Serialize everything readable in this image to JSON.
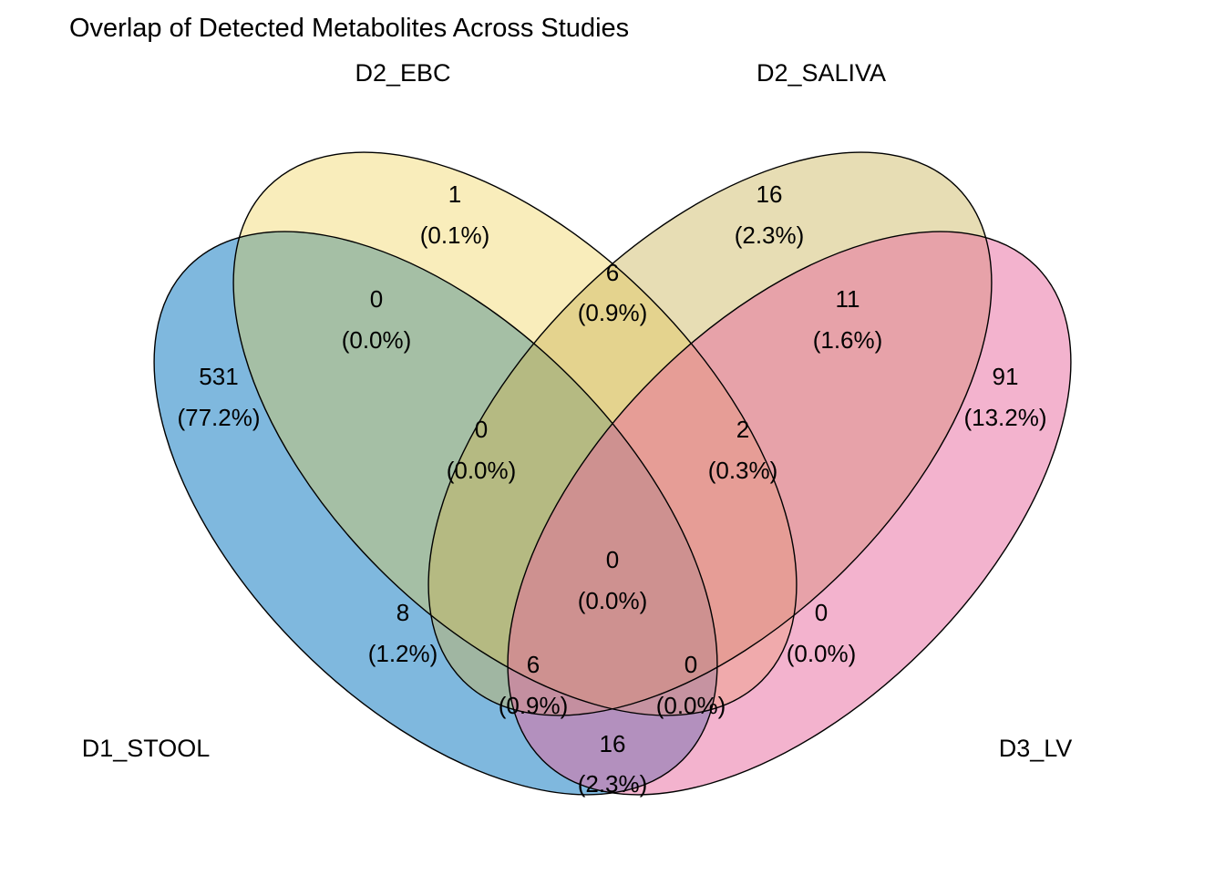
{
  "title": "Overlap of Detected Metabolites Across Studies",
  "colors": {
    "D1_STOOL": "#0072BD",
    "D2_EBC": "#EFCB3D",
    "D2_SALIVA": "#C9B458",
    "D3_LV": "#E8689E",
    "outline": "#000000"
  },
  "sets": [
    {
      "key": "stool",
      "name": "D1_STOOL"
    },
    {
      "key": "ebc",
      "name": "D2_EBC"
    },
    {
      "key": "saliva",
      "name": "D2_SALIVA"
    },
    {
      "key": "lv",
      "name": "D3_LV"
    }
  ],
  "regions": [
    {
      "id": "stool-only",
      "members": [
        "D1_STOOL"
      ],
      "count": "531",
      "percent": "(77.2%)"
    },
    {
      "id": "ebc-only",
      "members": [
        "D2_EBC"
      ],
      "count": "1",
      "percent": "(0.1%)"
    },
    {
      "id": "saliva-only",
      "members": [
        "D2_SALIVA"
      ],
      "count": "16",
      "percent": "(2.3%)"
    },
    {
      "id": "lv-only",
      "members": [
        "D3_LV"
      ],
      "count": "91",
      "percent": "(13.2%)"
    },
    {
      "id": "stool-ebc",
      "members": [
        "D1_STOOL",
        "D2_EBC"
      ],
      "count": "0",
      "percent": "(0.0%)"
    },
    {
      "id": "ebc-saliva",
      "members": [
        "D2_EBC",
        "D2_SALIVA"
      ],
      "count": "6",
      "percent": "(0.9%)"
    },
    {
      "id": "saliva-lv",
      "members": [
        "D2_SALIVA",
        "D3_LV"
      ],
      "count": "11",
      "percent": "(1.6%)"
    },
    {
      "id": "stool-ebc-saliva",
      "members": [
        "D1_STOOL",
        "D2_EBC",
        "D2_SALIVA"
      ],
      "count": "0",
      "percent": "(0.0%)"
    },
    {
      "id": "ebc-saliva-lv",
      "members": [
        "D2_EBC",
        "D2_SALIVA",
        "D3_LV"
      ],
      "count": "2",
      "percent": "(0.3%)"
    },
    {
      "id": "all-four",
      "members": [
        "D1_STOOL",
        "D2_EBC",
        "D2_SALIVA",
        "D3_LV"
      ],
      "count": "0",
      "percent": "(0.0%)"
    },
    {
      "id": "stool-saliva",
      "members": [
        "D1_STOOL",
        "D2_SALIVA"
      ],
      "count": "8",
      "percent": "(1.2%)"
    },
    {
      "id": "ebc-lv",
      "members": [
        "D2_EBC",
        "D3_LV"
      ],
      "count": "0",
      "percent": "(0.0%)"
    },
    {
      "id": "stool-saliva-lv",
      "members": [
        "D1_STOOL",
        "D2_SALIVA",
        "D3_LV"
      ],
      "count": "6",
      "percent": "(0.9%)"
    },
    {
      "id": "stool-ebc-lv",
      "members": [
        "D1_STOOL",
        "D2_EBC",
        "D3_LV"
      ],
      "count": "0",
      "percent": "(0.0%)"
    },
    {
      "id": "stool-lv",
      "members": [
        "D1_STOOL",
        "D3_LV"
      ],
      "count": "16",
      "percent": "(2.3%)"
    }
  ]
}
